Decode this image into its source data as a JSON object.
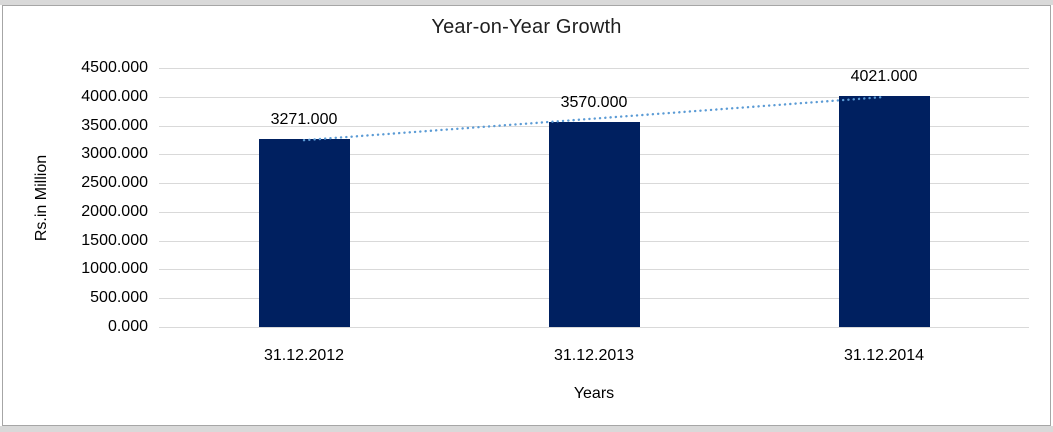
{
  "frame": {
    "background": "#ffffff",
    "outer_band_color": "#d9d9d9",
    "border_color": "#a6a6a6"
  },
  "chart_data": {
    "type": "bar",
    "title": "Year-on-Year Growth",
    "xlabel": "Years",
    "ylabel": "Rs.in Million",
    "categories": [
      "31.12.2012",
      "31.12.2013",
      "31.12.2014"
    ],
    "values": [
      3271,
      3570,
      4021
    ],
    "data_labels": [
      "3271.000",
      "3570.000",
      "4021.000"
    ],
    "y_ticks": [
      "0.000",
      "500.000",
      "1000.000",
      "1500.000",
      "2000.000",
      "2500.000",
      "3000.000",
      "3500.000",
      "4000.000",
      "4500.000"
    ],
    "ylim": [
      0,
      4500
    ],
    "grid": true,
    "legend": "none",
    "bar_color": "#002060",
    "gridline_color": "#d9d9d9",
    "text_color": "#000000",
    "trendline": {
      "type": "linear",
      "style": "dotted",
      "color": "#5B9BD5"
    }
  }
}
